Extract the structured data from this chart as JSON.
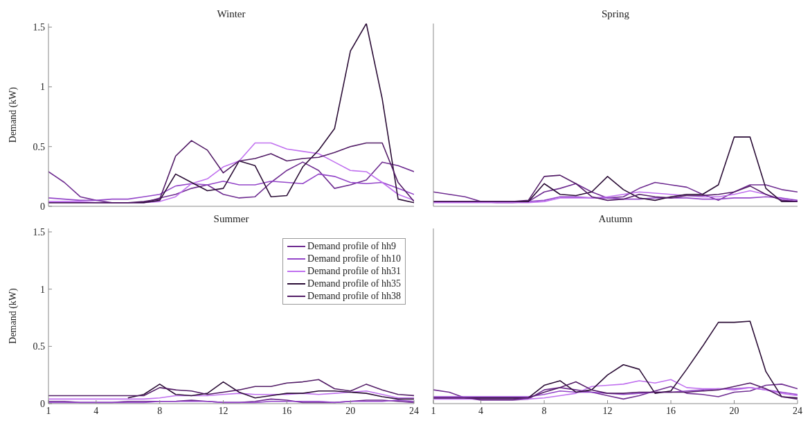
{
  "chart_data": [
    {
      "type": "line",
      "title": "Winter",
      "ylabel": "Demand (kW)",
      "x": [
        1,
        2,
        3,
        4,
        5,
        6,
        7,
        8,
        9,
        10,
        11,
        12,
        13,
        14,
        15,
        16,
        17,
        18,
        19,
        20,
        21,
        22,
        23,
        24
      ],
      "xlim": [
        1,
        24
      ],
      "xticks": [
        1,
        4,
        8,
        12,
        16,
        20,
        24
      ],
      "ylim": [
        0,
        1.53
      ],
      "yticks": [
        0,
        0.5,
        1,
        1.5
      ],
      "tick_labels": "y",
      "series": [
        {
          "color": "#6f2d91",
          "values": [
            0.29,
            0.2,
            0.08,
            0.05,
            0.03,
            0.03,
            0.03,
            0.07,
            0.1,
            0.15,
            0.18,
            0.1,
            0.07,
            0.08,
            0.2,
            0.3,
            0.37,
            0.3,
            0.15,
            0.18,
            0.22,
            0.37,
            0.34,
            0.29
          ]
        },
        {
          "color": "#9446c9",
          "values": [
            0.07,
            0.06,
            0.05,
            0.05,
            0.06,
            0.06,
            0.08,
            0.1,
            0.17,
            0.19,
            0.18,
            0.21,
            0.18,
            0.18,
            0.21,
            0.2,
            0.19,
            0.27,
            0.25,
            0.2,
            0.19,
            0.2,
            0.15,
            0.1
          ]
        },
        {
          "color": "#c070ef",
          "values": [
            0.04,
            0.04,
            0.04,
            0.03,
            0.03,
            0.03,
            0.03,
            0.04,
            0.08,
            0.19,
            0.23,
            0.33,
            0.38,
            0.53,
            0.53,
            0.48,
            0.46,
            0.44,
            0.37,
            0.3,
            0.29,
            0.2,
            0.1,
            0.05
          ]
        },
        {
          "color": "#2b0d36",
          "values": [
            0.03,
            0.03,
            0.03,
            0.03,
            0.03,
            0.03,
            0.03,
            0.05,
            0.27,
            0.2,
            0.13,
            0.15,
            0.38,
            0.34,
            0.08,
            0.09,
            0.33,
            0.47,
            0.65,
            1.3,
            1.53,
            0.9,
            0.06,
            0.03
          ]
        },
        {
          "color": "#521c66",
          "values": [
            0.03,
            0.03,
            0.03,
            0.03,
            0.03,
            0.03,
            0.04,
            0.06,
            0.42,
            0.55,
            0.47,
            0.28,
            0.38,
            0.4,
            0.44,
            0.38,
            0.4,
            0.41,
            0.45,
            0.5,
            0.53,
            0.53,
            0.2,
            0.04
          ]
        }
      ]
    },
    {
      "type": "line",
      "title": "Spring",
      "x": [
        1,
        2,
        3,
        4,
        5,
        6,
        7,
        8,
        9,
        10,
        11,
        12,
        13,
        14,
        15,
        16,
        17,
        18,
        19,
        20,
        21,
        22,
        23,
        24
      ],
      "xlim": [
        1,
        24
      ],
      "xticks": [
        1,
        4,
        8,
        12,
        16,
        20,
        24
      ],
      "ylim": [
        0,
        1.53
      ],
      "yticks": [
        0,
        0.5,
        1,
        1.5
      ],
      "tick_labels": false,
      "series": [
        {
          "color": "#6f2d91",
          "values": [
            0.12,
            0.1,
            0.08,
            0.04,
            0.03,
            0.03,
            0.04,
            0.12,
            0.15,
            0.19,
            0.12,
            0.07,
            0.08,
            0.15,
            0.2,
            0.18,
            0.16,
            0.1,
            0.05,
            0.12,
            0.18,
            0.18,
            0.14,
            0.12
          ]
        },
        {
          "color": "#9446c9",
          "values": [
            0.04,
            0.04,
            0.04,
            0.04,
            0.04,
            0.04,
            0.04,
            0.05,
            0.08,
            0.08,
            0.07,
            0.07,
            0.06,
            0.06,
            0.07,
            0.07,
            0.07,
            0.06,
            0.06,
            0.07,
            0.07,
            0.08,
            0.07,
            0.05
          ]
        },
        {
          "color": "#c070ef",
          "values": [
            0.03,
            0.03,
            0.03,
            0.03,
            0.03,
            0.03,
            0.03,
            0.04,
            0.07,
            0.07,
            0.07,
            0.08,
            0.1,
            0.12,
            0.11,
            0.1,
            0.09,
            0.08,
            0.08,
            0.1,
            0.13,
            0.1,
            0.06,
            0.04
          ]
        },
        {
          "color": "#2b0d36",
          "values": [
            0.04,
            0.04,
            0.04,
            0.04,
            0.04,
            0.04,
            0.04,
            0.19,
            0.1,
            0.09,
            0.12,
            0.25,
            0.14,
            0.07,
            0.05,
            0.08,
            0.1,
            0.1,
            0.18,
            0.58,
            0.58,
            0.15,
            0.04,
            0.04
          ]
        },
        {
          "color": "#521c66",
          "values": [
            0.04,
            0.04,
            0.04,
            0.04,
            0.04,
            0.04,
            0.05,
            0.25,
            0.26,
            0.19,
            0.08,
            0.05,
            0.06,
            0.1,
            0.08,
            0.07,
            0.09,
            0.09,
            0.1,
            0.12,
            0.17,
            0.1,
            0.05,
            0.04
          ]
        }
      ]
    },
    {
      "type": "line",
      "title": "Summer",
      "ylabel": "Demand (kW)",
      "x": [
        1,
        2,
        3,
        4,
        5,
        6,
        7,
        8,
        9,
        10,
        11,
        12,
        13,
        14,
        15,
        16,
        17,
        18,
        19,
        20,
        21,
        22,
        23,
        24
      ],
      "xlim": [
        1,
        24
      ],
      "xticks": [
        1,
        4,
        8,
        12,
        16,
        20,
        24
      ],
      "ylim": [
        0,
        1.53
      ],
      "yticks": [
        0,
        0.5,
        1,
        1.5
      ],
      "legend": "top right",
      "series": [
        {
          "name": "Demand profile of hh9",
          "color": "#6f2d91",
          "values": [
            0.02,
            0.02,
            0.01,
            0.01,
            0.01,
            0.02,
            0.02,
            0.02,
            0.02,
            0.03,
            0.02,
            0.01,
            0.01,
            0.02,
            0.04,
            0.03,
            0.01,
            0.01,
            0.01,
            0.02,
            0.03,
            0.03,
            0.02,
            0.01
          ]
        },
        {
          "name": "Demand profile of hh10",
          "color": "#9446c9",
          "values": [
            0.01,
            0.01,
            0.01,
            0.01,
            0.01,
            0.01,
            0.01,
            0.02,
            0.02,
            0.02,
            0.02,
            0.01,
            0.01,
            0.01,
            0.02,
            0.02,
            0.02,
            0.02,
            0.01,
            0.02,
            0.02,
            0.02,
            0.03,
            0.02
          ]
        },
        {
          "name": "Demand profile of hh31",
          "color": "#c070ef",
          "values": [
            0.04,
            0.04,
            0.04,
            0.04,
            0.04,
            0.04,
            0.04,
            0.05,
            0.07,
            0.07,
            0.07,
            0.08,
            0.09,
            0.08,
            0.08,
            0.08,
            0.09,
            0.08,
            0.09,
            0.1,
            0.11,
            0.08,
            0.05,
            0.05
          ]
        },
        {
          "name": "Demand profile of hh35",
          "color": "#2b0d36",
          "values": [
            null,
            null,
            null,
            null,
            null,
            0.05,
            0.08,
            0.17,
            0.08,
            0.07,
            0.09,
            0.19,
            0.1,
            0.05,
            0.07,
            0.09,
            0.09,
            0.11,
            0.11,
            0.1,
            0.09,
            0.06,
            0.04,
            0.04
          ]
        },
        {
          "name": "Demand profile of hh38",
          "color": "#521c66",
          "values": [
            0.07,
            0.07,
            0.07,
            0.07,
            0.07,
            0.07,
            0.07,
            0.14,
            0.12,
            0.11,
            0.08,
            0.1,
            0.12,
            0.15,
            0.15,
            0.18,
            0.19,
            0.21,
            0.13,
            0.11,
            0.17,
            0.12,
            0.08,
            0.07
          ]
        }
      ]
    },
    {
      "type": "line",
      "title": "Autumn",
      "x": [
        1,
        2,
        3,
        4,
        5,
        6,
        7,
        8,
        9,
        10,
        11,
        12,
        13,
        14,
        15,
        16,
        17,
        18,
        19,
        20,
        21,
        22,
        23,
        24
      ],
      "xlim": [
        1,
        24
      ],
      "xticks": [
        1,
        4,
        8,
        12,
        16,
        20,
        24
      ],
      "ylim": [
        0,
        1.53
      ],
      "yticks": [
        0,
        0.5,
        1,
        1.5
      ],
      "tick_labels": "x",
      "series": [
        {
          "color": "#6f2d91",
          "values": [
            0.12,
            0.1,
            0.05,
            0.03,
            0.03,
            0.03,
            0.04,
            0.12,
            0.14,
            0.12,
            0.1,
            0.07,
            0.04,
            0.07,
            0.11,
            0.15,
            0.09,
            0.08,
            0.06,
            0.1,
            0.11,
            0.16,
            0.17,
            0.13
          ]
        },
        {
          "color": "#9446c9",
          "values": [
            0.06,
            0.06,
            0.06,
            0.06,
            0.06,
            0.06,
            0.06,
            0.08,
            0.11,
            0.1,
            0.1,
            0.09,
            0.08,
            0.09,
            0.1,
            0.1,
            0.11,
            0.12,
            0.13,
            0.13,
            0.14,
            0.12,
            0.1,
            0.08
          ]
        },
        {
          "color": "#c070ef",
          "values": [
            0.04,
            0.04,
            0.04,
            0.04,
            0.04,
            0.04,
            0.04,
            0.05,
            0.07,
            0.09,
            0.15,
            0.16,
            0.17,
            0.2,
            0.18,
            0.21,
            0.14,
            0.13,
            0.13,
            0.12,
            0.14,
            0.12,
            0.09,
            0.07
          ]
        },
        {
          "color": "#2b0d36",
          "values": [
            0.05,
            0.05,
            0.05,
            0.05,
            0.05,
            0.05,
            0.05,
            0.16,
            0.2,
            0.1,
            0.12,
            0.25,
            0.34,
            0.3,
            0.09,
            0.11,
            0.3,
            0.5,
            0.71,
            0.71,
            0.72,
            0.28,
            0.06,
            0.05
          ]
        },
        {
          "color": "#521c66",
          "values": [
            0.05,
            0.05,
            0.05,
            0.04,
            0.04,
            0.04,
            0.05,
            0.1,
            0.14,
            0.19,
            0.12,
            0.09,
            0.09,
            0.1,
            0.1,
            0.1,
            0.1,
            0.11,
            0.12,
            0.15,
            0.18,
            0.13,
            0.06,
            0.04
          ]
        }
      ]
    }
  ]
}
